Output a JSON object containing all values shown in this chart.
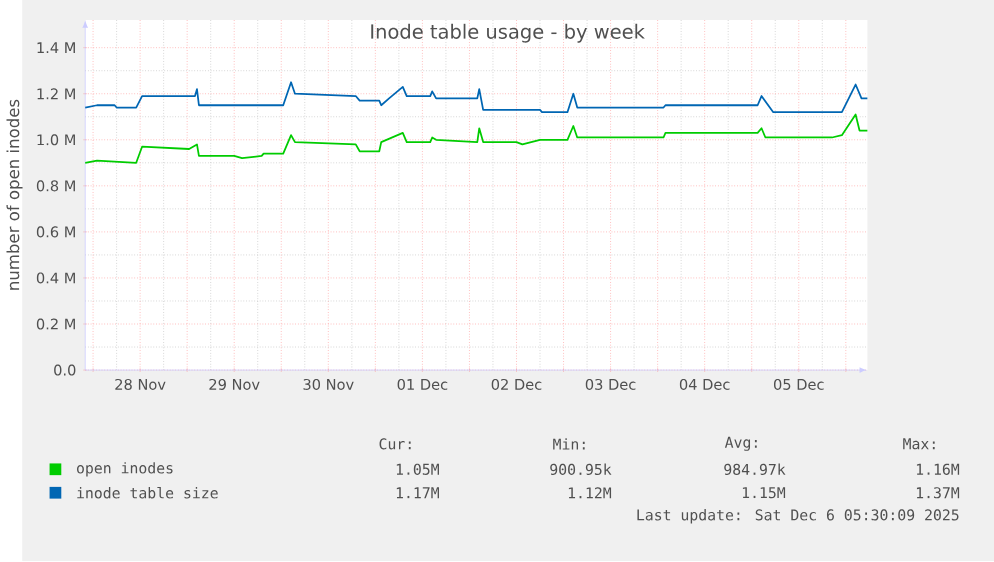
{
  "chart_data": {
    "type": "line",
    "title": "Inode table usage - by week",
    "ylabel": "number of open inodes",
    "xlim": [
      "2025-11-27T22:00",
      "2025-12-06T05:30"
    ],
    "xticks": [
      {
        "value": "2025-11-28T00:00",
        "label": null
      },
      {
        "value": "2025-11-28T12:00",
        "label": "28 Nov"
      },
      {
        "value": "2025-11-29T00:00",
        "label": null
      },
      {
        "value": "2025-11-29T12:00",
        "label": "29 Nov"
      },
      {
        "value": "2025-11-30T00:00",
        "label": null
      },
      {
        "value": "2025-11-30T12:00",
        "label": "30 Nov"
      },
      {
        "value": "2025-12-01T00:00",
        "label": null
      },
      {
        "value": "2025-12-01T12:00",
        "label": "01 Dec"
      },
      {
        "value": "2025-12-02T00:00",
        "label": null
      },
      {
        "value": "2025-12-02T12:00",
        "label": "02 Dec"
      },
      {
        "value": "2025-12-03T00:00",
        "label": null
      },
      {
        "value": "2025-12-03T12:00",
        "label": "03 Dec"
      },
      {
        "value": "2025-12-04T00:00",
        "label": null
      },
      {
        "value": "2025-12-04T12:00",
        "label": "04 Dec"
      },
      {
        "value": "2025-12-05T00:00",
        "label": null
      },
      {
        "value": "2025-12-05T12:00",
        "label": "05 Dec"
      },
      {
        "value": "2025-12-06T00:00",
        "label": null
      }
    ],
    "ylim": [
      0,
      1520000
    ],
    "yticks": [
      {
        "value": 0,
        "label": "0.0"
      },
      {
        "value": 200000,
        "label": "0.2 M"
      },
      {
        "value": 400000,
        "label": "0.4 M"
      },
      {
        "value": 600000,
        "label": "0.6 M"
      },
      {
        "value": 800000,
        "label": "0.8 M"
      },
      {
        "value": 1000000,
        "label": "1.0 M"
      },
      {
        "value": 1200000,
        "label": "1.2 M"
      },
      {
        "value": 1400000,
        "label": "1.4 M"
      }
    ],
    "grid": true,
    "legend": "bottom",
    "series": [
      {
        "name": "open inodes",
        "color": "#00cc00",
        "x": [
          "2025-11-27T22:00",
          "2025-11-28T01:00",
          "2025-11-28T11:00",
          "2025-11-28T12:30",
          "2025-11-29T00:30",
          "2025-11-29T02:30",
          "2025-11-29T03:00",
          "2025-11-29T12:00",
          "2025-11-29T14:00",
          "2025-11-29T19:00",
          "2025-11-29T19:30",
          "2025-11-30T00:30",
          "2025-11-30T02:30",
          "2025-11-30T03:30",
          "2025-11-30T19:00",
          "2025-11-30T20:00",
          "2025-12-01T01:00",
          "2025-12-01T01:30",
          "2025-12-01T07:00",
          "2025-12-01T08:00",
          "2025-12-01T14:00",
          "2025-12-01T14:30",
          "2025-12-01T15:30",
          "2025-12-02T02:00",
          "2025-12-02T02:30",
          "2025-12-02T03:30",
          "2025-12-02T12:00",
          "2025-12-02T13:30",
          "2025-12-02T18:00",
          "2025-12-03T01:00",
          "2025-12-03T02:30",
          "2025-12-03T03:30",
          "2025-12-04T01:30",
          "2025-12-04T02:00",
          "2025-12-05T01:30",
          "2025-12-05T02:30",
          "2025-12-05T03:30",
          "2025-12-05T20:30",
          "2025-12-05T23:00",
          "2025-12-06T02:30",
          "2025-12-06T03:30",
          "2025-12-06T05:30"
        ],
        "values": [
          900000,
          910000,
          900000,
          970000,
          960000,
          980000,
          930000,
          930000,
          920000,
          930000,
          940000,
          940000,
          1020000,
          990000,
          980000,
          950000,
          950000,
          990000,
          1030000,
          990000,
          990000,
          1010000,
          1000000,
          990000,
          1050000,
          990000,
          990000,
          980000,
          1000000,
          1000000,
          1060000,
          1010000,
          1010000,
          1030000,
          1030000,
          1050000,
          1010000,
          1010000,
          1020000,
          1110000,
          1040000,
          1040000
        ]
      },
      {
        "name": "inode table size",
        "color": "#0066b3",
        "x": [
          "2025-11-27T22:00",
          "2025-11-28T01:00",
          "2025-11-28T05:30",
          "2025-11-28T06:00",
          "2025-11-28T11:00",
          "2025-11-28T12:30",
          "2025-11-29T02:00",
          "2025-11-29T02:30",
          "2025-11-29T03:00",
          "2025-11-30T00:30",
          "2025-11-30T02:30",
          "2025-11-30T03:30",
          "2025-11-30T19:00",
          "2025-11-30T20:00",
          "2025-12-01T01:00",
          "2025-12-01T01:30",
          "2025-12-01T03:30",
          "2025-12-01T07:00",
          "2025-12-01T08:00",
          "2025-12-01T14:00",
          "2025-12-01T14:30",
          "2025-12-01T15:30",
          "2025-12-02T02:00",
          "2025-12-02T02:30",
          "2025-12-02T03:30",
          "2025-12-02T18:00",
          "2025-12-02T18:30",
          "2025-12-03T01:00",
          "2025-12-03T02:30",
          "2025-12-03T03:30",
          "2025-12-04T01:30",
          "2025-12-04T02:00",
          "2025-12-05T01:30",
          "2025-12-05T02:30",
          "2025-12-05T05:30",
          "2025-12-05T23:00",
          "2025-12-06T02:30",
          "2025-12-06T04:00",
          "2025-12-06T05:30"
        ],
        "values": [
          1140000,
          1150000,
          1150000,
          1140000,
          1140000,
          1190000,
          1190000,
          1220000,
          1150000,
          1150000,
          1250000,
          1200000,
          1190000,
          1170000,
          1170000,
          1150000,
          1180000,
          1230000,
          1190000,
          1190000,
          1210000,
          1180000,
          1180000,
          1220000,
          1130000,
          1130000,
          1120000,
          1120000,
          1200000,
          1140000,
          1140000,
          1150000,
          1150000,
          1190000,
          1120000,
          1120000,
          1240000,
          1180000,
          1180000
        ]
      }
    ],
    "annotations": [
      "Cur:",
      "Min:",
      "Avg:",
      "Max:",
      "1.05M",
      "900.95k",
      "984.97k",
      "1.16M",
      "1.17M",
      "1.12M",
      "1.15M",
      "1.37M",
      "Last update: Sat Dec  6 05:30:09 2025"
    ]
  }
}
